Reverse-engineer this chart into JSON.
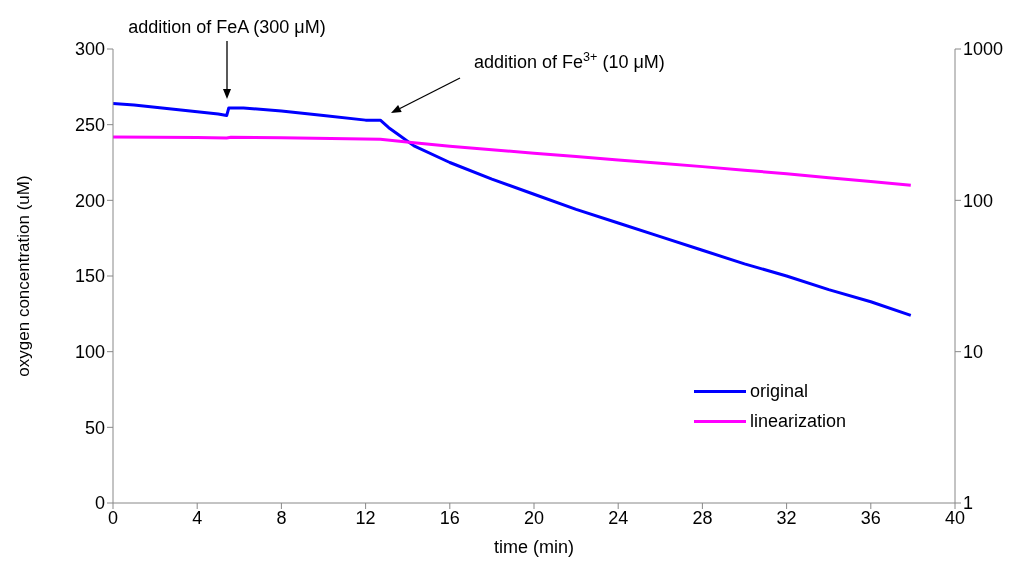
{
  "chart_data": {
    "type": "line",
    "xlabel": "time (min)",
    "ylabel": "oxygen concentration (uM)",
    "xlim": [
      0,
      40
    ],
    "xticks": [
      0,
      4,
      8,
      12,
      16,
      20,
      24,
      28,
      32,
      36,
      40
    ],
    "ylim": [
      0,
      300
    ],
    "yticks": [
      0,
      50,
      100,
      150,
      200,
      250,
      300
    ],
    "y2lim": [
      1,
      1000
    ],
    "y2ticks": [
      1,
      10,
      100,
      1000
    ],
    "log": "y2",
    "grid": false,
    "legend": "bottom right",
    "marker": "none",
    "line_style": "solid",
    "series": [
      {
        "name": "original",
        "color": "#0000ff",
        "x": [
          0,
          1,
          3,
          5,
          5.4,
          5.5,
          6.2,
          8,
          10,
          12,
          12.7,
          13.1,
          13.5,
          14.3,
          16,
          18,
          20,
          22,
          24,
          26,
          28,
          30,
          32,
          34,
          36,
          37.9
        ],
        "values": [
          264,
          263,
          260,
          257,
          256,
          261,
          261,
          259,
          256,
          253,
          253,
          248,
          244,
          236,
          225,
          214,
          204,
          194,
          185,
          176,
          167,
          158,
          150,
          141,
          133,
          124
        ]
      },
      {
        "name": "linearization",
        "color": "#ff00ff",
        "axis": "y2",
        "x": [
          0,
          4,
          5.4,
          5.6,
          8,
          12.7,
          14.3,
          16,
          18,
          20,
          22,
          24,
          26,
          28,
          30,
          32,
          34,
          36,
          37.9
        ],
        "values": [
          262,
          260,
          258,
          261,
          259,
          253,
          240,
          228,
          216,
          205,
          195,
          185,
          176,
          167,
          158,
          150,
          141,
          133,
          126
        ]
      }
    ],
    "annotations": [
      "addition of FeA (300 μM)",
      "addition of Fe$^{3+}$ (10 μM)"
    ]
  }
}
